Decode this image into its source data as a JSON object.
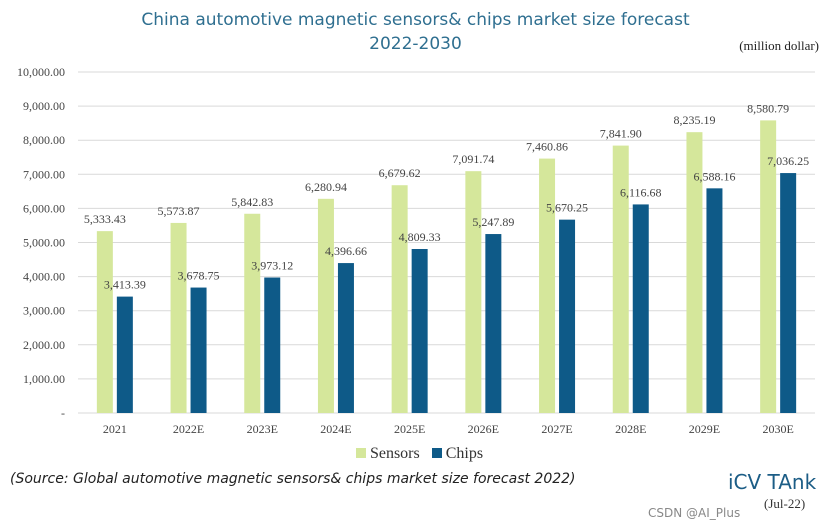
{
  "chart_data": {
    "type": "bar",
    "title": "China automotive magnetic sensors& chips market size forecast 2022-2030",
    "title_lines": [
      "China automotive magnetic sensors& chips market size forecast",
      "2022-2030"
    ],
    "unit": "(million dollar)",
    "categories": [
      "2021",
      "2022E",
      "2023E",
      "2024E",
      "2025E",
      "2026E",
      "2027E",
      "2028E",
      "2029E",
      "2030E"
    ],
    "series": [
      {
        "name": "Sensors",
        "color": "#d5e79b",
        "values": [
          5333.43,
          5573.87,
          5842.83,
          6280.94,
          6679.62,
          7091.74,
          7460.86,
          7841.9,
          8235.19,
          8580.79
        ],
        "labels": [
          "5,333.43",
          "5,573.87",
          "5,842.83",
          "6,280.94",
          "6,679.62",
          "7,091.74",
          "7,460.86",
          "7,841.90",
          "8,235.19",
          "8,580.79"
        ]
      },
      {
        "name": "Chips",
        "color": "#0e5a88",
        "values": [
          3413.39,
          3678.75,
          3973.12,
          4396.66,
          4809.33,
          5247.89,
          5670.25,
          6116.68,
          6588.16,
          7036.25
        ],
        "labels": [
          "3,413.39",
          "3,678.75",
          "3,973.12",
          "4,396.66",
          "4,809.33",
          "5,247.89",
          "5,670.25",
          "6,116.68",
          "6,588.16",
          "7,036.25"
        ]
      }
    ],
    "ylim": [
      0,
      10000
    ],
    "yticks": [
      "-",
      "1,000.00",
      "2,000.00",
      "3,000.00",
      "4,000.00",
      "5,000.00",
      "6,000.00",
      "7,000.00",
      "8,000.00",
      "9,000.00",
      "10,000.00"
    ],
    "grid": true,
    "legend": "bottom"
  },
  "source": "(Source: Global automotive magnetic sensors& chips market size forecast 2022)",
  "logo": "iCV TAnk",
  "date": "(Jul-22)",
  "watermark": "CSDN @AI_Plus"
}
